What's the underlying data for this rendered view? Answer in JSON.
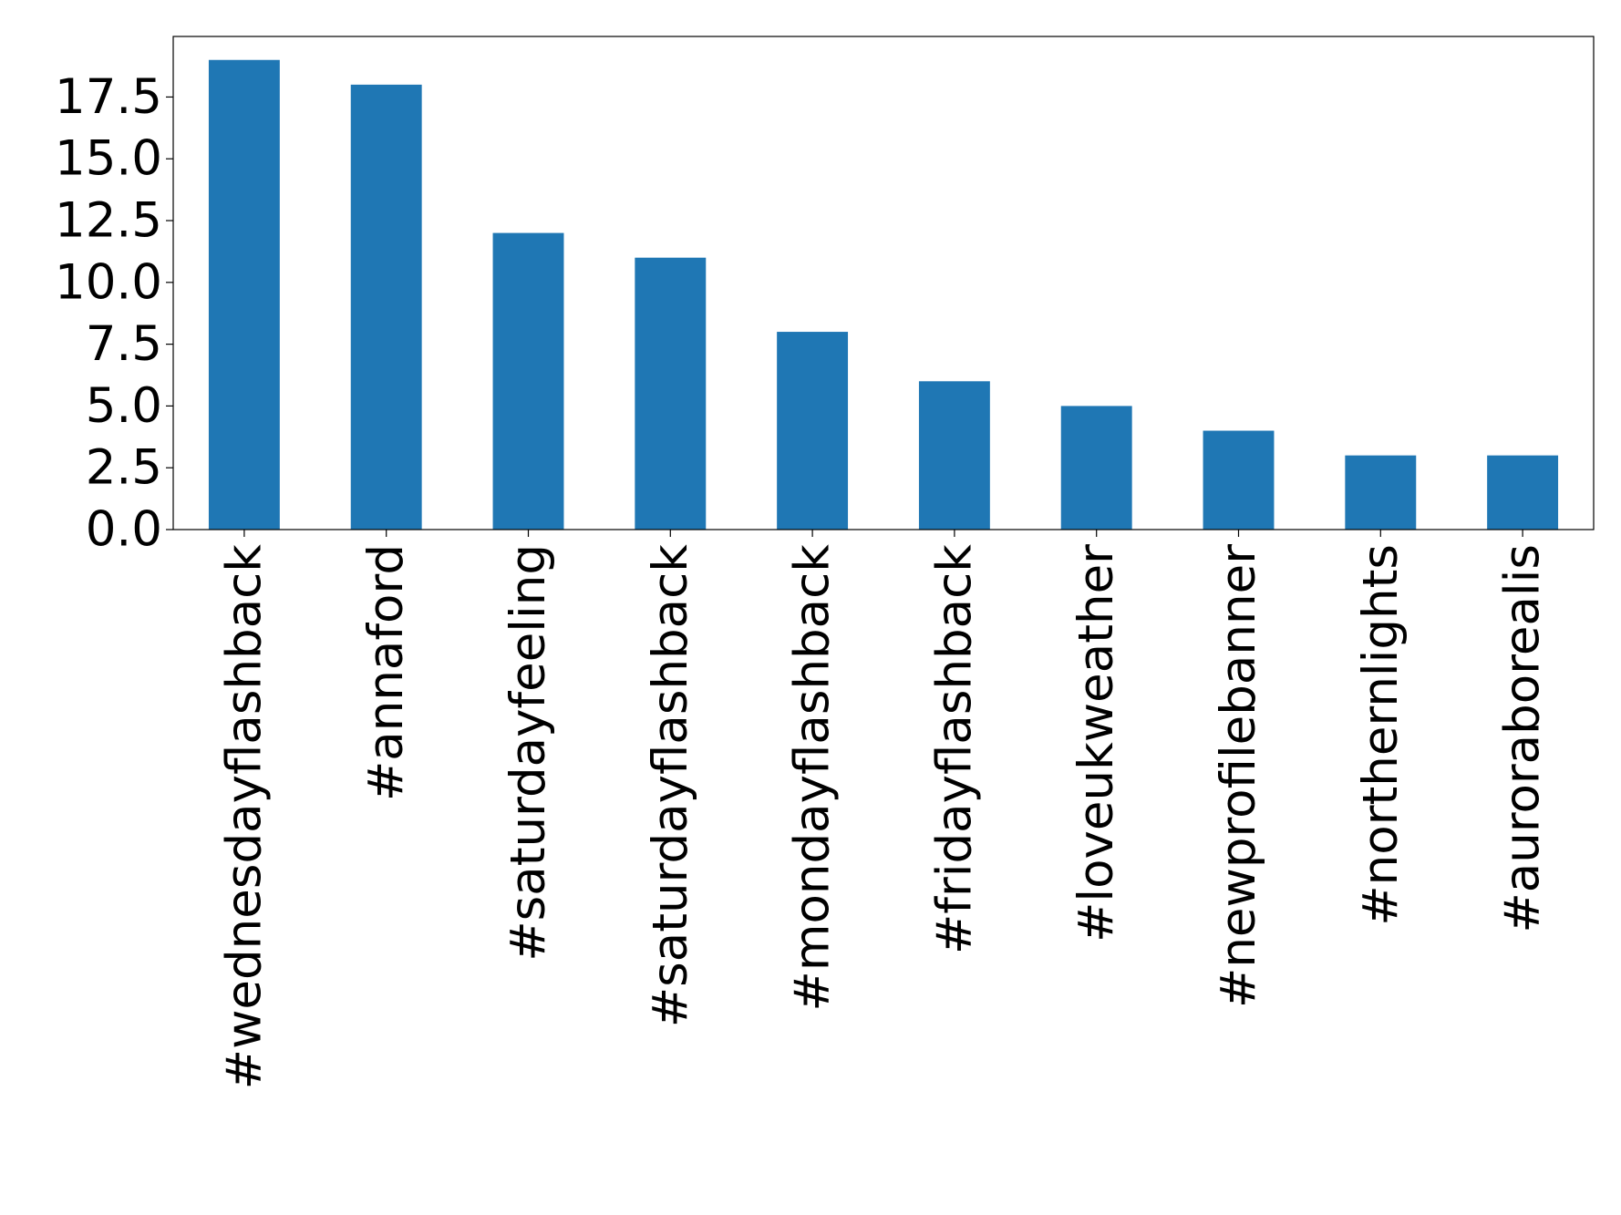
{
  "chart_data": {
    "type": "bar",
    "categories": [
      "#wednesdayflashback",
      "#annaford",
      "#saturdayfeeling",
      "#saturdayflashback",
      "#mondayflashback",
      "#fridayflashback",
      "#loveukweather",
      "#newprofilebanner",
      "#northernlights",
      "#auroraborealis"
    ],
    "values": [
      19,
      18,
      12,
      11,
      8,
      6,
      5,
      4,
      3,
      3
    ],
    "color": "#1f77b4",
    "ylim": [
      0,
      19.95
    ],
    "yticks": [
      0,
      2.5,
      5,
      7.5,
      10,
      12.5,
      15,
      17.5
    ],
    "tick_labels": [
      "0.0",
      "2.5",
      "5.0",
      "7.5",
      "10.0",
      "12.5",
      "15.0",
      "17.5"
    ],
    "grid": false
  }
}
